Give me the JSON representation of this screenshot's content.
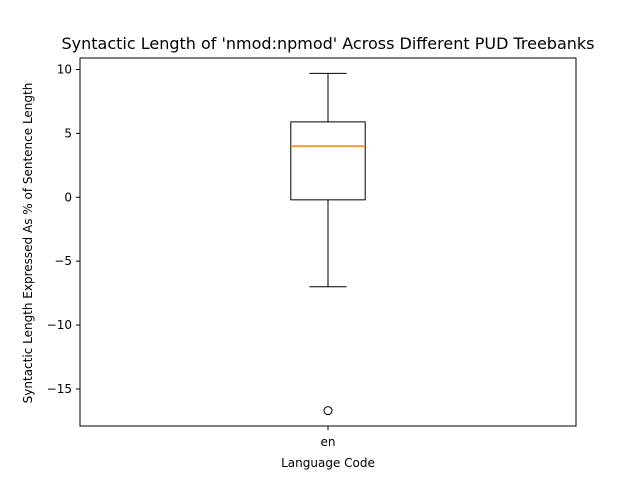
{
  "chart_data": {
    "type": "box",
    "title": "Syntactic Length of 'nmod:npmod' Across Different PUD Treebanks",
    "xlabel": "Language Code",
    "ylabel": "Syntactic Length Expressed As % of Sentence Length",
    "categories": [
      "en"
    ],
    "ylim": [
      -17.9,
      10.9
    ],
    "yticks": [
      10,
      5,
      0,
      -5,
      -10,
      -15
    ],
    "grid": false,
    "boxes": [
      {
        "category": "en",
        "whisker_low": -7.0,
        "q1": -0.2,
        "median": 4.0,
        "q3": 5.9,
        "whisker_high": 9.7,
        "outliers": [
          -16.7
        ]
      }
    ],
    "colors": {
      "box": "#000000",
      "median": "#ff7f0e",
      "axes": "#000000"
    }
  }
}
